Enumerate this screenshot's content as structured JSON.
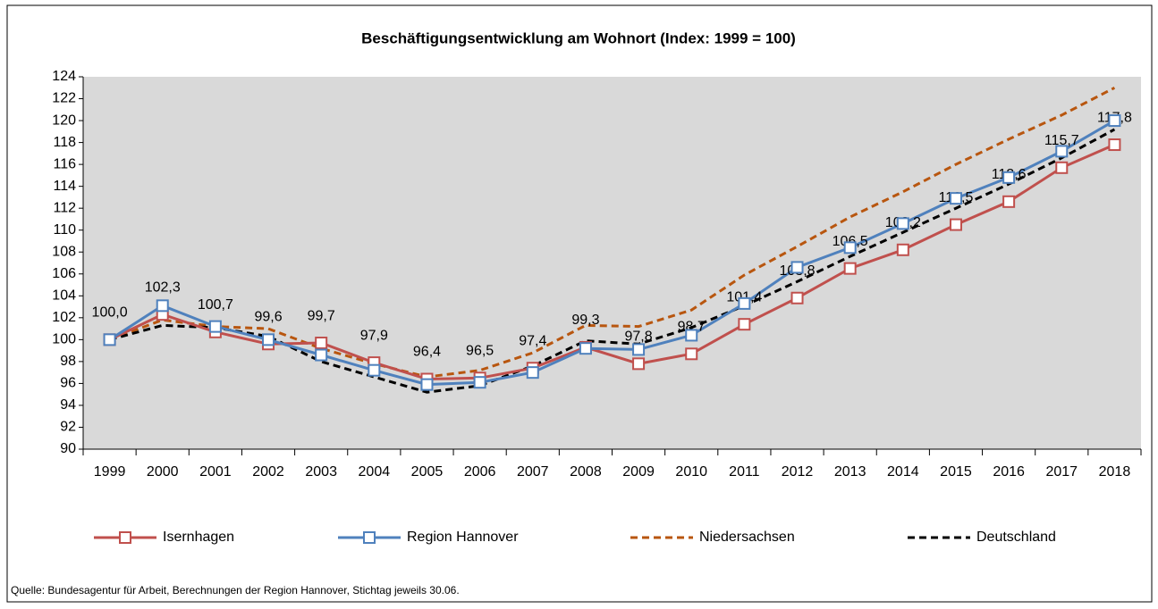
{
  "chart_data": {
    "type": "line",
    "title": "Beschäftigungsentwicklung  am Wohnort  (Index: 1999 = 100)",
    "source": "Quelle: Bundesagentur für Arbeit, Berechnungen  der Region Hannover, Stichtag jeweils 30.06.",
    "categories": [
      "1999",
      "2000",
      "2001",
      "2002",
      "2003",
      "2004",
      "2005",
      "2006",
      "2007",
      "2008",
      "2009",
      "2010",
      "2011",
      "2012",
      "2013",
      "2014",
      "2015",
      "2016",
      "2017",
      "2018"
    ],
    "series": [
      {
        "name": "Isernhagen",
        "color": "#c0504d",
        "line_style": "solid",
        "marker": "square",
        "values": [
          100.0,
          102.3,
          100.7,
          99.6,
          99.7,
          97.9,
          96.4,
          96.5,
          97.4,
          99.3,
          97.8,
          98.7,
          101.4,
          103.8,
          106.5,
          108.2,
          110.5,
          112.6,
          115.7,
          117.8
        ],
        "value_labels": [
          "100,0",
          "102,3",
          "100,7",
          "99,6",
          "99,7",
          "97,9",
          "96,4",
          "96,5",
          "97,4",
          "99,3",
          "97,8",
          "98,7",
          "101,4",
          "103,8",
          "106,5",
          "108,2",
          "110,5",
          "112,6",
          "115,7",
          "117,8"
        ]
      },
      {
        "name": "Region Hannover",
        "color": "#4f81bd",
        "line_style": "solid",
        "marker": "square",
        "values": [
          100.0,
          103.1,
          101.2,
          100.0,
          98.6,
          97.2,
          95.9,
          96.1,
          97.0,
          99.2,
          99.1,
          100.4,
          103.3,
          106.6,
          108.4,
          110.6,
          112.9,
          114.8,
          117.2,
          120.0
        ]
      },
      {
        "name": "Niedersachsen",
        "color": "#b8560f",
        "line_style": "dashed",
        "marker": "none",
        "values": [
          100.0,
          101.8,
          101.2,
          101.0,
          99.2,
          97.8,
          96.6,
          97.2,
          98.8,
          101.3,
          101.2,
          102.7,
          105.9,
          108.5,
          111.2,
          113.5,
          116.0,
          118.3,
          120.5,
          123.0
        ]
      },
      {
        "name": "Deutschland",
        "color": "#000000",
        "line_style": "dashed",
        "marker": "none",
        "values": [
          100.0,
          101.3,
          101.1,
          100.3,
          98.0,
          96.6,
          95.2,
          95.8,
          97.6,
          99.9,
          99.6,
          101.1,
          103.1,
          105.3,
          107.6,
          109.8,
          112.0,
          114.2,
          116.6,
          119.2
        ]
      }
    ],
    "ylim": [
      90,
      124
    ],
    "yticks": [
      90,
      92,
      94,
      96,
      98,
      100,
      102,
      104,
      106,
      108,
      110,
      112,
      114,
      116,
      118,
      120,
      122,
      124
    ],
    "grid": false,
    "legend": "bottom",
    "plot_background": "#d9d9d9"
  }
}
